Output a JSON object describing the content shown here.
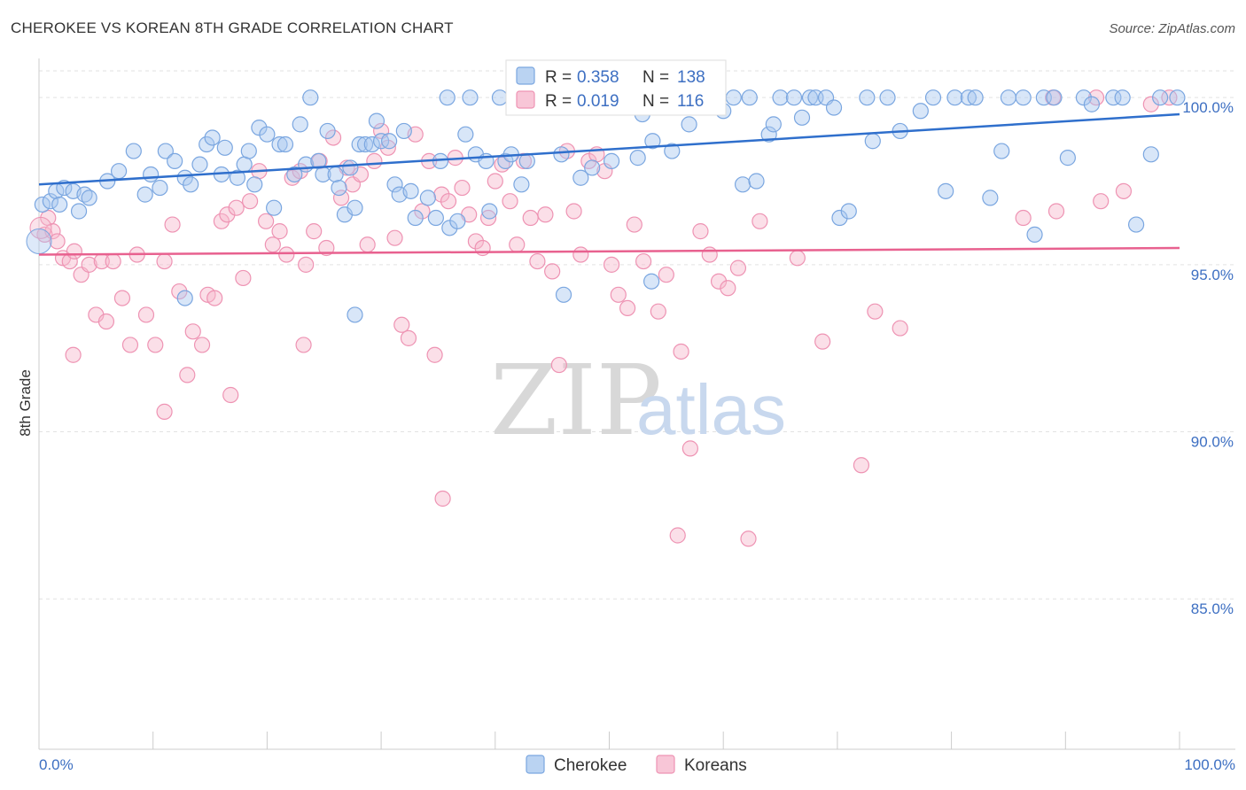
{
  "header": {
    "title": "CHEROKEE VS KOREAN 8TH GRADE CORRELATION CHART",
    "source": "Source: ZipAtlas.com"
  },
  "watermark": {
    "zip": "ZIP",
    "atlas": "atlas"
  },
  "legend": {
    "rows": [
      {
        "r_label": "R =",
        "r_value": "0.358",
        "n_label": "N =",
        "n_value": "138"
      },
      {
        "r_label": "R =",
        "r_value": "0.019",
        "n_label": "N =",
        "n_value": "116"
      }
    ]
  },
  "bottom_legend": [
    "Cherokee",
    "Koreans"
  ],
  "colors": {
    "cherokee_fill": "#a9c8ef",
    "cherokee_stroke": "#7aa6e0",
    "cherokee_line": "#2f6fcc",
    "koreans_fill": "#f6b8cd",
    "koreans_stroke": "#ee93b3",
    "koreans_line": "#e8618f",
    "tick_label": "#3d6fc2",
    "grid": "#e2e2e2"
  },
  "chart_data": {
    "type": "scatter",
    "title": "CHEROKEE VS KOREAN 8TH GRADE CORRELATION CHART",
    "xlabel": "",
    "ylabel": "8th Grade",
    "xlim": [
      0,
      100
    ],
    "ylim": [
      80.5,
      100.8
    ],
    "x_tick_labels": [
      "0.0%",
      "100.0%"
    ],
    "y_ticks": [
      85,
      90,
      95,
      100
    ],
    "y_tick_labels": [
      "85.0%",
      "90.0%",
      "95.0%",
      "100.0%"
    ],
    "grid": "horizontal dashed",
    "legend_position": "top-center",
    "series": [
      {
        "name": "Cherokee",
        "r": 0.358,
        "n": 138,
        "trend": [
          [
            0,
            97.4
          ],
          [
            100,
            99.5
          ]
        ],
        "points": [
          [
            0.3,
            96.8
          ],
          [
            1.0,
            96.9
          ],
          [
            1.5,
            97.2
          ],
          [
            2.2,
            97.3
          ],
          [
            3.0,
            97.2
          ],
          [
            3.5,
            96.6
          ],
          [
            4.0,
            97.1
          ],
          [
            4.4,
            97.0
          ],
          [
            6.0,
            97.5
          ],
          [
            7.0,
            97.8
          ],
          [
            8.3,
            98.4
          ],
          [
            9.3,
            97.1
          ],
          [
            9.8,
            97.7
          ],
          [
            10.6,
            97.3
          ],
          [
            11.1,
            98.4
          ],
          [
            11.9,
            98.1
          ],
          [
            12.8,
            97.6
          ],
          [
            13.3,
            97.4
          ],
          [
            14.1,
            98.0
          ],
          [
            14.7,
            98.6
          ],
          [
            15.2,
            98.8
          ],
          [
            16.0,
            97.7
          ],
          [
            16.3,
            98.5
          ],
          [
            17.4,
            97.6
          ],
          [
            18.0,
            98.0
          ],
          [
            18.4,
            98.4
          ],
          [
            18.9,
            97.4
          ],
          [
            19.3,
            99.1
          ],
          [
            20.0,
            98.9
          ],
          [
            20.6,
            96.7
          ],
          [
            21.1,
            98.6
          ],
          [
            21.6,
            98.6
          ],
          [
            22.4,
            97.7
          ],
          [
            22.9,
            99.2
          ],
          [
            23.4,
            98.0
          ],
          [
            23.8,
            100.0
          ],
          [
            24.5,
            98.1
          ],
          [
            24.9,
            97.7
          ],
          [
            25.3,
            99.0
          ],
          [
            26.0,
            97.7
          ],
          [
            26.3,
            97.3
          ],
          [
            26.8,
            96.5
          ],
          [
            27.3,
            97.9
          ],
          [
            27.7,
            96.7
          ],
          [
            28.1,
            98.6
          ],
          [
            28.6,
            98.6
          ],
          [
            29.2,
            98.6
          ],
          [
            29.6,
            99.3
          ],
          [
            30.0,
            98.7
          ],
          [
            30.7,
            98.7
          ],
          [
            31.2,
            97.4
          ],
          [
            31.6,
            97.1
          ],
          [
            32.0,
            99.0
          ],
          [
            32.6,
            97.2
          ],
          [
            33.0,
            96.4
          ],
          [
            34.1,
            97.0
          ],
          [
            34.8,
            96.4
          ],
          [
            35.2,
            98.1
          ],
          [
            35.8,
            100.0
          ],
          [
            36.0,
            96.1
          ],
          [
            36.7,
            96.3
          ],
          [
            37.4,
            98.9
          ],
          [
            37.8,
            100.0
          ],
          [
            38.3,
            98.3
          ],
          [
            39.2,
            98.1
          ],
          [
            39.5,
            96.6
          ],
          [
            40.4,
            100.0
          ],
          [
            40.9,
            98.1
          ],
          [
            41.4,
            98.3
          ],
          [
            42.3,
            97.4
          ],
          [
            42.8,
            98.1
          ],
          [
            44.0,
            100.0
          ],
          [
            45.8,
            98.3
          ],
          [
            47.5,
            97.6
          ],
          [
            48.1,
            100.0
          ],
          [
            48.5,
            97.9
          ],
          [
            49.5,
            100.0
          ],
          [
            50.2,
            98.1
          ],
          [
            50.7,
            100.0
          ],
          [
            51.2,
            100.0
          ],
          [
            52.0,
            100.0
          ],
          [
            52.5,
            98.2
          ],
          [
            52.9,
            99.5
          ],
          [
            53.8,
            98.7
          ],
          [
            54.4,
            100.0
          ],
          [
            55.1,
            100.0
          ],
          [
            55.5,
            98.4
          ],
          [
            57.0,
            99.2
          ],
          [
            57.7,
            100.0
          ],
          [
            58.4,
            100.0
          ],
          [
            59.0,
            100.0
          ],
          [
            59.6,
            100.0
          ],
          [
            60.0,
            99.6
          ],
          [
            60.9,
            100.0
          ],
          [
            61.7,
            97.4
          ],
          [
            62.3,
            100.0
          ],
          [
            62.9,
            97.5
          ],
          [
            64.0,
            98.9
          ],
          [
            64.4,
            99.2
          ],
          [
            65.0,
            100.0
          ],
          [
            66.2,
            100.0
          ],
          [
            66.9,
            99.4
          ],
          [
            67.6,
            100.0
          ],
          [
            68.1,
            100.0
          ],
          [
            69.0,
            100.0
          ],
          [
            69.7,
            99.7
          ],
          [
            70.2,
            96.4
          ],
          [
            71.0,
            96.6
          ],
          [
            72.6,
            100.0
          ],
          [
            73.1,
            98.7
          ],
          [
            74.4,
            100.0
          ],
          [
            75.5,
            99.0
          ],
          [
            77.3,
            99.6
          ],
          [
            78.4,
            100.0
          ],
          [
            79.5,
            97.2
          ],
          [
            80.3,
            100.0
          ],
          [
            81.5,
            100.0
          ],
          [
            82.1,
            100.0
          ],
          [
            83.4,
            97.0
          ],
          [
            84.4,
            98.4
          ],
          [
            85.0,
            100.0
          ],
          [
            86.3,
            100.0
          ],
          [
            87.3,
            95.9
          ],
          [
            88.1,
            100.0
          ],
          [
            89.0,
            100.0
          ],
          [
            90.2,
            98.2
          ],
          [
            91.6,
            100.0
          ],
          [
            92.3,
            99.8
          ],
          [
            94.2,
            100.0
          ],
          [
            95.0,
            100.0
          ],
          [
            96.2,
            96.2
          ],
          [
            97.5,
            98.3
          ],
          [
            98.3,
            100.0
          ],
          [
            99.8,
            100.0
          ],
          [
            1.8,
            96.8
          ],
          [
            12.8,
            94.0
          ],
          [
            27.7,
            93.5
          ],
          [
            46.0,
            94.1
          ],
          [
            53.7,
            94.5
          ]
        ]
      },
      {
        "name": "Koreans",
        "r": 0.019,
        "n": 116,
        "trend": [
          [
            0,
            95.3
          ],
          [
            100,
            95.5
          ]
        ],
        "points": [
          [
            0.5,
            95.9
          ],
          [
            0.8,
            96.4
          ],
          [
            1.2,
            96.0
          ],
          [
            1.6,
            95.7
          ],
          [
            2.1,
            95.2
          ],
          [
            2.7,
            95.1
          ],
          [
            3.1,
            95.4
          ],
          [
            3.7,
            94.7
          ],
          [
            4.4,
            95.0
          ],
          [
            5.0,
            93.5
          ],
          [
            5.5,
            95.1
          ],
          [
            5.9,
            93.3
          ],
          [
            6.5,
            95.1
          ],
          [
            7.3,
            94.0
          ],
          [
            8.0,
            92.6
          ],
          [
            8.6,
            95.3
          ],
          [
            9.4,
            93.5
          ],
          [
            10.2,
            92.6
          ],
          [
            11.0,
            95.1
          ],
          [
            11.7,
            96.2
          ],
          [
            12.3,
            94.2
          ],
          [
            13.0,
            91.7
          ],
          [
            13.5,
            93.0
          ],
          [
            14.3,
            92.6
          ],
          [
            14.8,
            94.1
          ],
          [
            15.4,
            94.0
          ],
          [
            16.0,
            96.3
          ],
          [
            16.5,
            96.5
          ],
          [
            17.3,
            96.7
          ],
          [
            17.9,
            94.6
          ],
          [
            18.5,
            96.9
          ],
          [
            19.3,
            97.8
          ],
          [
            19.9,
            96.3
          ],
          [
            20.5,
            95.6
          ],
          [
            21.1,
            96.0
          ],
          [
            21.7,
            95.3
          ],
          [
            22.2,
            97.6
          ],
          [
            22.9,
            97.8
          ],
          [
            23.4,
            95.0
          ],
          [
            24.1,
            96.0
          ],
          [
            24.6,
            98.1
          ],
          [
            25.2,
            95.5
          ],
          [
            25.8,
            98.8
          ],
          [
            26.5,
            97.0
          ],
          [
            27.0,
            97.9
          ],
          [
            27.5,
            97.4
          ],
          [
            28.2,
            97.7
          ],
          [
            28.8,
            95.6
          ],
          [
            29.4,
            98.1
          ],
          [
            30.0,
            99.0
          ],
          [
            30.6,
            98.5
          ],
          [
            31.2,
            95.8
          ],
          [
            31.8,
            93.2
          ],
          [
            32.4,
            92.8
          ],
          [
            33.0,
            98.9
          ],
          [
            33.6,
            96.6
          ],
          [
            34.2,
            98.1
          ],
          [
            34.7,
            92.3
          ],
          [
            35.3,
            97.1
          ],
          [
            35.9,
            96.9
          ],
          [
            36.5,
            98.2
          ],
          [
            37.1,
            97.3
          ],
          [
            37.7,
            96.5
          ],
          [
            38.3,
            95.7
          ],
          [
            38.9,
            95.5
          ],
          [
            39.4,
            96.4
          ],
          [
            40.0,
            97.5
          ],
          [
            40.6,
            98.0
          ],
          [
            41.3,
            96.9
          ],
          [
            41.9,
            95.6
          ],
          [
            42.5,
            98.1
          ],
          [
            43.1,
            96.4
          ],
          [
            43.7,
            95.1
          ],
          [
            44.4,
            96.5
          ],
          [
            45.0,
            94.8
          ],
          [
            45.6,
            92.0
          ],
          [
            46.3,
            98.4
          ],
          [
            46.9,
            96.6
          ],
          [
            47.5,
            95.3
          ],
          [
            48.2,
            98.1
          ],
          [
            48.9,
            98.3
          ],
          [
            49.6,
            97.8
          ],
          [
            50.2,
            95.0
          ],
          [
            50.8,
            94.1
          ],
          [
            51.6,
            93.7
          ],
          [
            52.2,
            96.2
          ],
          [
            53.0,
            95.1
          ],
          [
            54.3,
            93.6
          ],
          [
            55.0,
            94.7
          ],
          [
            56.3,
            92.4
          ],
          [
            57.1,
            89.5
          ],
          [
            58.0,
            96.0
          ],
          [
            58.8,
            95.3
          ],
          [
            59.6,
            94.5
          ],
          [
            60.4,
            94.3
          ],
          [
            61.3,
            94.9
          ],
          [
            62.2,
            86.8
          ],
          [
            63.2,
            96.3
          ],
          [
            66.5,
            95.2
          ],
          [
            68.7,
            92.7
          ],
          [
            72.1,
            89.0
          ],
          [
            73.3,
            93.6
          ],
          [
            75.5,
            93.1
          ],
          [
            86.3,
            96.4
          ],
          [
            89.2,
            96.6
          ],
          [
            93.1,
            96.9
          ],
          [
            95.1,
            97.2
          ],
          [
            97.5,
            99.8
          ],
          [
            99.1,
            100.0
          ],
          [
            88.9,
            100.0
          ],
          [
            92.7,
            100.0
          ],
          [
            3.0,
            92.3
          ],
          [
            11.0,
            90.6
          ],
          [
            16.8,
            91.1
          ],
          [
            23.2,
            92.6
          ],
          [
            35.4,
            88.0
          ],
          [
            56.0,
            86.9
          ]
        ]
      }
    ]
  }
}
